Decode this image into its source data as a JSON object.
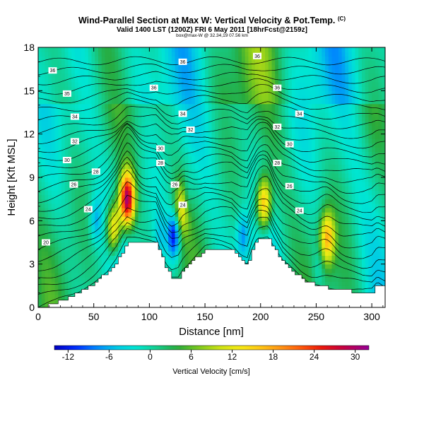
{
  "header": {
    "title": "Wind-Parallel Section at Max W: Vertical Velocity & Pot.Temp.",
    "copyright": "(C)",
    "subtitle": "Valid 1400 LST (1200Z) FRI 6 May 2011 [18hrFcst@2159z]",
    "small_line": "box@max-W @ 32.34,19 07.56 km"
  },
  "chart_data": {
    "type": "heatmap",
    "xlabel": "Distance [nm]",
    "ylabel": "Height [Kft MSL]",
    "xlim": [
      0,
      312
    ],
    "ylim": [
      0,
      18
    ],
    "xticks": [
      0,
      50,
      100,
      150,
      200,
      250,
      300
    ],
    "yticks": [
      0,
      3,
      6,
      9,
      12,
      15,
      18
    ],
    "colorbar": {
      "label": "Vertical Velocity [cm/s]",
      "range": [
        -14,
        32
      ],
      "ticks": [
        -12,
        -6,
        0,
        6,
        12,
        18,
        24,
        30
      ]
    },
    "terrain_kft": [
      [
        0,
        0
      ],
      [
        15,
        0.3
      ],
      [
        28,
        0.7
      ],
      [
        40,
        1.2
      ],
      [
        50,
        1.7
      ],
      [
        58,
        2.2
      ],
      [
        64,
        2.6
      ],
      [
        70,
        3.1
      ],
      [
        75,
        3.8
      ],
      [
        80,
        4.5
      ],
      [
        90,
        4.5
      ],
      [
        100,
        4.5
      ],
      [
        106,
        4.5
      ],
      [
        110,
        3.6
      ],
      [
        115,
        2.6
      ],
      [
        120,
        2.1
      ],
      [
        126,
        2.1
      ],
      [
        130,
        2.6
      ],
      [
        137,
        3.1
      ],
      [
        144,
        3.6
      ],
      [
        150,
        4.0
      ],
      [
        158,
        4.1
      ],
      [
        166,
        4.1
      ],
      [
        174,
        4.0
      ],
      [
        182,
        3.3
      ],
      [
        188,
        3.0
      ],
      [
        192,
        4.0
      ],
      [
        197,
        4.8
      ],
      [
        207,
        4.8
      ],
      [
        212,
        4.0
      ],
      [
        220,
        3.0
      ],
      [
        228,
        2.5
      ],
      [
        236,
        2.0
      ],
      [
        244,
        1.7
      ],
      [
        254,
        1.5
      ],
      [
        262,
        1.3
      ],
      [
        272,
        1.2
      ],
      [
        282,
        1.1
      ],
      [
        292,
        1.0
      ],
      [
        300,
        1.1
      ],
      [
        305,
        1.6
      ],
      [
        312,
        1.4
      ]
    ],
    "updrafts": [
      {
        "x": 80,
        "y": 7.5,
        "peak": 30
      },
      {
        "x": 68,
        "y": 5.5,
        "peak": 16
      },
      {
        "x": 203,
        "y": 7.2,
        "peak": 18
      },
      {
        "x": 260,
        "y": 4.8,
        "peak": 16
      },
      {
        "x": 130,
        "y": 7.0,
        "peak": 14
      }
    ],
    "downdrafts": [
      {
        "x": 122,
        "y": 5.0,
        "peak": -13
      },
      {
        "x": 133,
        "y": 7.5,
        "peak": -8
      },
      {
        "x": 52,
        "y": 6.0,
        "peak": -6
      },
      {
        "x": 184,
        "y": 5.0,
        "peak": -7
      },
      {
        "x": 252,
        "y": 2.5,
        "peak": -3
      },
      {
        "x": 110,
        "y": 5.0,
        "peak": -4
      }
    ],
    "theta_contours": [
      20,
      22,
      24,
      26,
      28,
      30,
      32,
      34,
      36
    ],
    "contour_labels": [
      {
        "x": 13,
        "y": 16.4,
        "text": "36"
      },
      {
        "x": 26,
        "y": 14.8,
        "text": "35"
      },
      {
        "x": 33,
        "y": 13.2,
        "text": "34"
      },
      {
        "x": 33,
        "y": 11.5,
        "text": "32"
      },
      {
        "x": 26,
        "y": 10.2,
        "text": "30"
      },
      {
        "x": 52,
        "y": 9.4,
        "text": "28"
      },
      {
        "x": 32,
        "y": 8.5,
        "text": "26"
      },
      {
        "x": 45,
        "y": 6.8,
        "text": "24"
      },
      {
        "x": 7,
        "y": 4.5,
        "text": "20"
      },
      {
        "x": 130,
        "y": 17.0,
        "text": "36"
      },
      {
        "x": 104,
        "y": 15.2,
        "text": "36"
      },
      {
        "x": 130,
        "y": 13.4,
        "text": "34"
      },
      {
        "x": 137,
        "y": 12.3,
        "text": "32"
      },
      {
        "x": 110,
        "y": 11.0,
        "text": "30"
      },
      {
        "x": 110,
        "y": 10.0,
        "text": "28"
      },
      {
        "x": 123,
        "y": 8.5,
        "text": "26"
      },
      {
        "x": 130,
        "y": 7.1,
        "text": "24"
      },
      {
        "x": 197,
        "y": 17.4,
        "text": "36"
      },
      {
        "x": 215,
        "y": 15.2,
        "text": "36"
      },
      {
        "x": 235,
        "y": 13.4,
        "text": "34"
      },
      {
        "x": 215,
        "y": 12.5,
        "text": "32"
      },
      {
        "x": 226,
        "y": 11.3,
        "text": "30"
      },
      {
        "x": 215,
        "y": 10.0,
        "text": "28"
      },
      {
        "x": 226,
        "y": 8.4,
        "text": "26"
      },
      {
        "x": 235,
        "y": 6.7,
        "text": "24"
      }
    ]
  }
}
